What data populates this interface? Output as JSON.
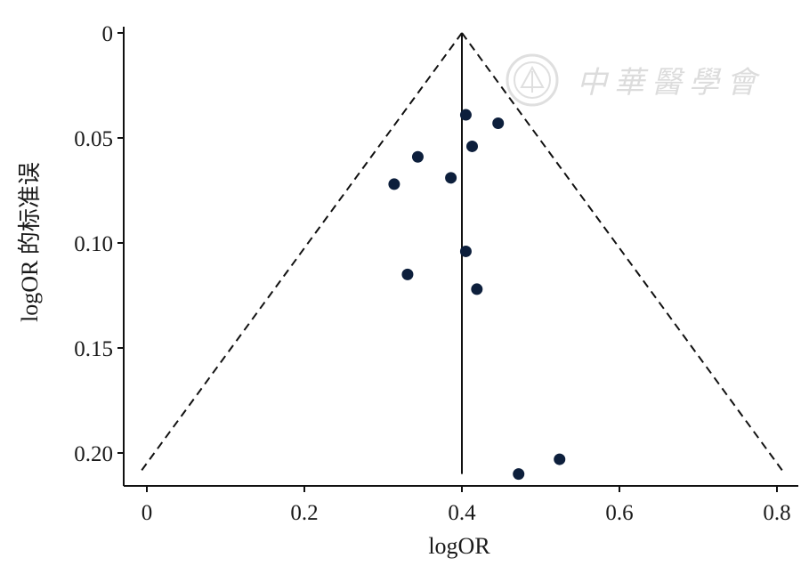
{
  "chart_data": {
    "type": "scatter",
    "title": "",
    "xlabel": "logOR",
    "ylabel": "logOR 的标准误",
    "xlim": [
      -0.02,
      0.82
    ],
    "ylim": [
      0,
      0.215
    ],
    "y_inverted": true,
    "x_ticks": [
      "0",
      "0.2",
      "0.4",
      "0.6",
      "0.8"
    ],
    "x_tick_values": [
      0,
      0.2,
      0.4,
      0.6,
      0.8
    ],
    "y_ticks": [
      "0",
      "0.05",
      "0.10",
      "0.15",
      "0.20"
    ],
    "y_tick_values": [
      0,
      0.05,
      0.1,
      0.15,
      0.2
    ],
    "grid": false,
    "legend": "none",
    "pooled_logOR": 0.4,
    "funnel_limits": {
      "apex": {
        "x": 0.4,
        "y": 0
      },
      "left_base": {
        "x": -0.01,
        "y": 0.21
      },
      "right_base": {
        "x": 0.81,
        "y": 0.21
      }
    },
    "points": [
      {
        "x": 0.405,
        "y": 0.039
      },
      {
        "x": 0.446,
        "y": 0.043
      },
      {
        "x": 0.413,
        "y": 0.054
      },
      {
        "x": 0.344,
        "y": 0.059
      },
      {
        "x": 0.314,
        "y": 0.072
      },
      {
        "x": 0.386,
        "y": 0.069
      },
      {
        "x": 0.405,
        "y": 0.104
      },
      {
        "x": 0.331,
        "y": 0.115
      },
      {
        "x": 0.419,
        "y": 0.122
      },
      {
        "x": 0.524,
        "y": 0.203
      },
      {
        "x": 0.472,
        "y": 0.21
      }
    ],
    "point_color": "#0d1f3c",
    "line_color": "#111111"
  },
  "watermark": {
    "text": "中華醫學會",
    "color": "#d9d9d9",
    "seal_icon": "seal-icon"
  }
}
